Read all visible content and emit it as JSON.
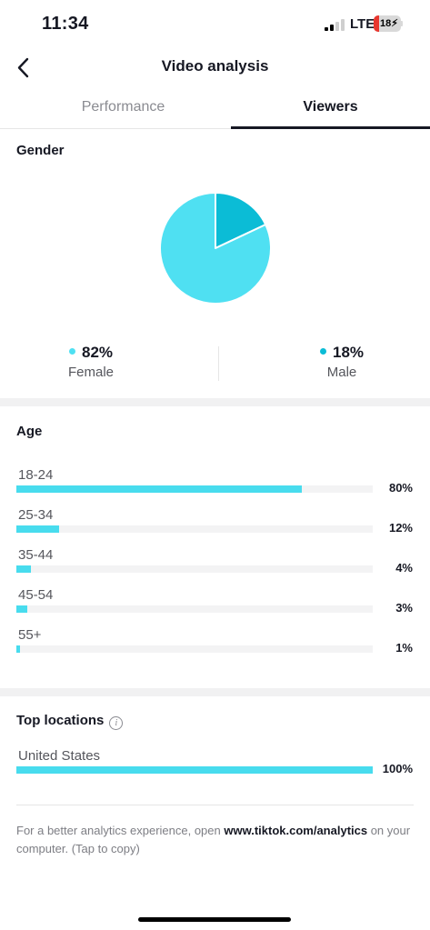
{
  "status_bar": {
    "time": "11:34",
    "network": "LTE",
    "battery": "18"
  },
  "header": {
    "title": "Video analysis",
    "back_icon": "chevron-left-icon"
  },
  "tabs": [
    {
      "label": "Performance",
      "active": false
    },
    {
      "label": "Viewers",
      "active": true
    }
  ],
  "colors": {
    "female": "#4fe0f2",
    "male": "#0bbcd6",
    "bar": "#48dcee",
    "track": "#f3f3f4"
  },
  "gender": {
    "title": "Gender",
    "female": {
      "pct": "82%",
      "label": "Female",
      "value": 82
    },
    "male": {
      "pct": "18%",
      "label": "Male",
      "value": 18
    }
  },
  "age": {
    "title": "Age",
    "rows": [
      {
        "label": "18-24",
        "pct": "80%",
        "value": 80
      },
      {
        "label": "25-34",
        "pct": "12%",
        "value": 12
      },
      {
        "label": "35-44",
        "pct": "4%",
        "value": 4
      },
      {
        "label": "45-54",
        "pct": "3%",
        "value": 3
      },
      {
        "label": "55+",
        "pct": "1%",
        "value": 1
      }
    ]
  },
  "locations": {
    "title": "Top locations",
    "rows": [
      {
        "label": "United States",
        "pct": "100%",
        "value": 100
      }
    ]
  },
  "footer": {
    "text_before": "For a better analytics experience, open ",
    "link": "www.tiktok.com/analytics",
    "text_after": " on your computer. (Tap to copy)"
  }
}
